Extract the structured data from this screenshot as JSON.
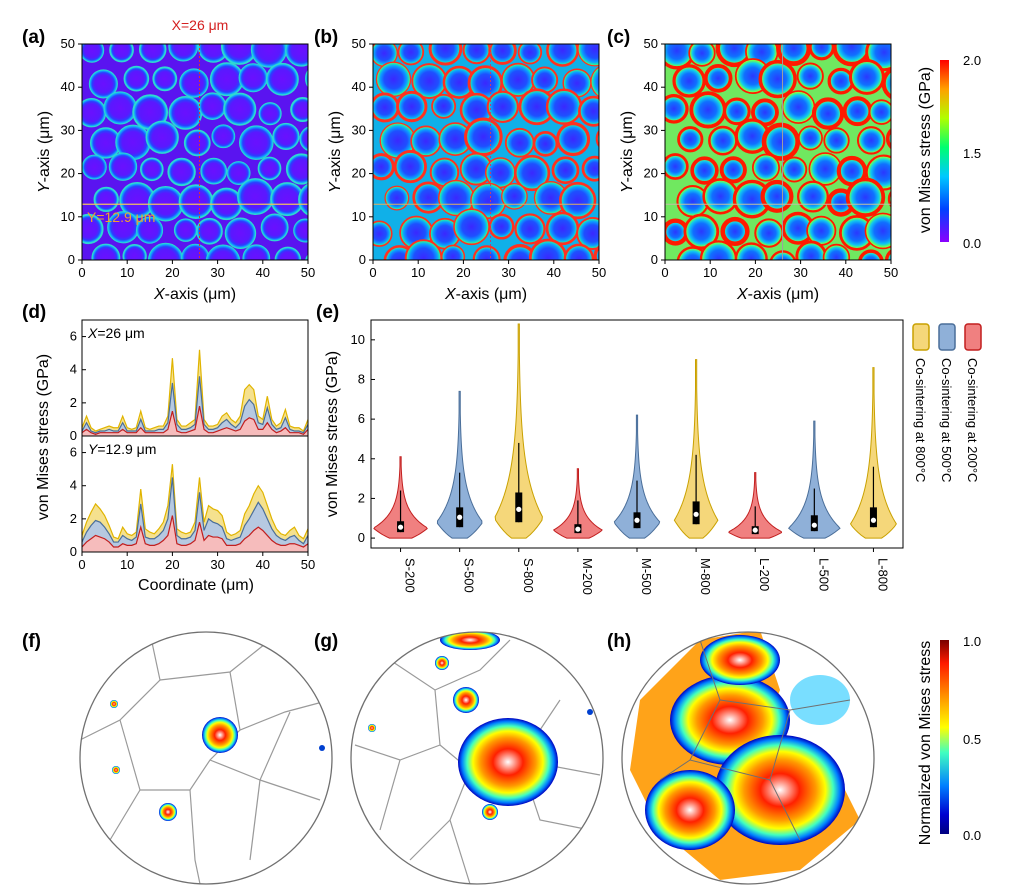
{
  "panels": {
    "a": {
      "letter": "(a)"
    },
    "b": {
      "letter": "(b)"
    },
    "c": {
      "letter": "(c)"
    },
    "d": {
      "letter": "(d)"
    },
    "e": {
      "letter": "(e)"
    },
    "f": {
      "letter": "(f)"
    },
    "g": {
      "letter": "(g)"
    },
    "h": {
      "letter": "(h)"
    }
  },
  "maps": {
    "x_title_var": "X",
    "x_title_rest": "-axis (μm)",
    "y_title_var": "Y",
    "y_title_rest": "-axis (μm)",
    "x_ticks": [
      "0",
      "10",
      "20",
      "30",
      "40",
      "50"
    ],
    "y_ticks": [
      "0",
      "10",
      "20",
      "30",
      "40",
      "50"
    ],
    "x_line_label": "X=26 μm",
    "y_line_label": "Y=12.9 μm",
    "x_line_value": 26,
    "y_line_value": 12.9,
    "axis_range": [
      0,
      50
    ]
  },
  "colorbar_top": {
    "title": "von Mises stress (GPa)",
    "ticks": [
      "2.0",
      "1.5",
      "0.0"
    ],
    "tick_values": [
      2.0,
      1.5,
      0.0
    ],
    "range": [
      0.0,
      2.0
    ],
    "colormap": [
      "#ff0000",
      "#ffaa00",
      "#aaff00",
      "#00ff66",
      "#00c8ff",
      "#0040ff",
      "#7a00ff"
    ]
  },
  "colorbar_bottom": {
    "title": "Normalized von Mises stress",
    "ticks": [
      "1.0",
      "0.5",
      "0.0"
    ],
    "tick_values": [
      1.0,
      0.5,
      0.0
    ],
    "range": [
      0.0,
      1.0
    ],
    "colormap": [
      "#8b0000",
      "#ff2000",
      "#ff9900",
      "#ffff00",
      "#40ffbf",
      "#0080ff",
      "#0000c0",
      "#000080"
    ]
  },
  "chart_data": [
    {
      "panel": "d",
      "type": "line",
      "ylabel": "von Mises stress (GPa)",
      "xlabel": "Coordinate (μm)",
      "xlim": [
        0,
        50
      ],
      "ylim": [
        0,
        7
      ],
      "y_ticks": [
        "0",
        "2",
        "4",
        "6"
      ],
      "x_ticks": [
        "0",
        "10",
        "20",
        "30",
        "40",
        "50"
      ],
      "subplots": [
        {
          "label": "X=26 μm",
          "x": [
            0,
            1,
            2,
            3,
            4,
            5,
            6,
            7,
            8,
            9,
            10,
            11,
            12,
            13,
            14,
            15,
            16,
            17,
            18,
            19,
            20,
            21,
            22,
            23,
            24,
            25,
            26,
            27,
            28,
            29,
            30,
            31,
            32,
            33,
            34,
            35,
            36,
            37,
            38,
            39,
            40,
            41,
            42,
            43,
            44,
            45,
            46,
            47,
            48,
            49,
            50
          ],
          "series": [
            {
              "color": "#e0b400",
              "fill": "#f3dc7a",
              "values": [
                0.5,
                1.2,
                0.5,
                0.3,
                0.4,
                0.5,
                0.6,
                0.5,
                0.5,
                1.2,
                0.5,
                0.4,
                0.5,
                1.5,
                0.5,
                0.4,
                0.5,
                0.6,
                0.6,
                1.2,
                4.7,
                1.0,
                0.6,
                0.6,
                0.8,
                1.0,
                5.2,
                1.0,
                0.6,
                0.6,
                0.7,
                1.2,
                1.4,
                1.0,
                0.8,
                1.2,
                2.8,
                3.1,
                2.8,
                1.2,
                1.0,
                2.4,
                1.0,
                0.6,
                0.8,
                1.6,
                0.6,
                0.5,
                0.5,
                0.3,
                1.0
              ]
            },
            {
              "color": "#4a6e99",
              "fill": "#a9bfdc",
              "values": [
                0.3,
                0.8,
                0.3,
                0.2,
                0.3,
                0.3,
                0.4,
                0.3,
                0.3,
                0.8,
                0.3,
                0.3,
                0.3,
                1.0,
                0.3,
                0.3,
                0.3,
                0.4,
                0.4,
                0.8,
                3.2,
                0.7,
                0.4,
                0.4,
                0.5,
                0.7,
                3.6,
                0.7,
                0.4,
                0.4,
                0.5,
                0.8,
                1.0,
                0.7,
                0.5,
                0.8,
                1.8,
                2.2,
                1.9,
                0.8,
                0.7,
                1.7,
                0.7,
                0.4,
                0.5,
                1.1,
                0.4,
                0.3,
                0.3,
                0.2,
                0.7
              ]
            },
            {
              "color": "#c21f1f",
              "fill": "#f4b0b0",
              "values": [
                0.2,
                0.4,
                0.2,
                0.1,
                0.2,
                0.2,
                0.2,
                0.2,
                0.2,
                0.4,
                0.2,
                0.2,
                0.2,
                0.5,
                0.2,
                0.2,
                0.2,
                0.2,
                0.2,
                0.4,
                1.5,
                0.3,
                0.2,
                0.2,
                0.3,
                0.4,
                1.8,
                0.4,
                0.2,
                0.2,
                0.3,
                0.4,
                0.5,
                0.4,
                0.3,
                0.4,
                0.9,
                1.1,
                1.0,
                0.4,
                0.4,
                0.8,
                0.4,
                0.2,
                0.3,
                0.5,
                0.2,
                0.2,
                0.2,
                0.1,
                0.4
              ]
            }
          ]
        },
        {
          "label": "Y=12.9 μm",
          "x": [
            0,
            1,
            2,
            3,
            4,
            5,
            6,
            7,
            8,
            9,
            10,
            11,
            12,
            13,
            14,
            15,
            16,
            17,
            18,
            19,
            20,
            21,
            22,
            23,
            24,
            25,
            26,
            27,
            28,
            29,
            30,
            31,
            32,
            33,
            34,
            35,
            36,
            37,
            38,
            39,
            40,
            41,
            42,
            43,
            44,
            45,
            46,
            47,
            48,
            49,
            50
          ],
          "series": [
            {
              "color": "#e0b400",
              "fill": "#f3dc7a",
              "values": [
                1.0,
                1.8,
                2.4,
                2.9,
                2.6,
                2.2,
                1.6,
                0.9,
                0.8,
                1.5,
                1.1,
                1.0,
                1.2,
                3.8,
                1.4,
                1.2,
                1.1,
                1.4,
                1.8,
                2.8,
                5.3,
                1.4,
                1.2,
                1.1,
                1.2,
                1.8,
                4.5,
                1.8,
                2.8,
                2.6,
                2.5,
                2.2,
                1.2,
                1.0,
                1.1,
                1.3,
                2.3,
                2.8,
                3.5,
                4.0,
                3.6,
                2.8,
                2.0,
                1.4,
                1.1,
                1.0,
                1.3,
                1.5,
                1.0,
                0.8,
                1.4
              ]
            },
            {
              "color": "#4a6e99",
              "fill": "#a9bfdc",
              "values": [
                0.6,
                1.2,
                1.6,
                1.9,
                1.8,
                1.5,
                1.1,
                0.6,
                0.6,
                1.0,
                0.8,
                0.7,
                0.9,
                2.9,
                0.9,
                0.8,
                0.8,
                1.0,
                1.3,
                2.0,
                4.5,
                1.0,
                0.8,
                0.8,
                0.9,
                1.3,
                3.6,
                1.3,
                2.0,
                1.8,
                1.7,
                1.5,
                0.8,
                0.7,
                0.8,
                0.9,
                1.6,
                2.0,
                2.5,
                3.0,
                2.6,
                2.0,
                1.4,
                1.0,
                0.8,
                0.7,
                0.9,
                1.0,
                0.7,
                0.5,
                1.0
              ]
            },
            {
              "color": "#c21f1f",
              "fill": "#f4b0b0",
              "values": [
                0.3,
                0.6,
                0.8,
                1.0,
                0.9,
                0.8,
                0.6,
                0.3,
                0.3,
                0.5,
                0.4,
                0.4,
                0.5,
                1.5,
                0.5,
                0.4,
                0.4,
                0.5,
                0.7,
                1.0,
                2.2,
                0.5,
                0.4,
                0.4,
                0.5,
                0.7,
                1.8,
                0.7,
                1.0,
                0.9,
                0.9,
                0.8,
                0.4,
                0.4,
                0.4,
                0.5,
                0.8,
                1.0,
                1.3,
                1.5,
                1.3,
                1.0,
                0.7,
                0.5,
                0.4,
                0.4,
                0.5,
                0.5,
                0.4,
                0.3,
                0.5
              ]
            }
          ]
        }
      ]
    },
    {
      "panel": "e",
      "type": "violin",
      "ylabel": "von Mises stress (GPa)",
      "ylim": [
        -0.5,
        11
      ],
      "y_ticks": [
        "0",
        "2",
        "4",
        "6",
        "8",
        "10"
      ],
      "categories": [
        "S-200",
        "S-500",
        "S-800",
        "M-200",
        "M-500",
        "M-800",
        "L-200",
        "L-500",
        "L-800"
      ],
      "legend": [
        {
          "name": "Co-sintering at 200°C",
          "color": "#c21f1f",
          "fill": "#f08080"
        },
        {
          "name": "Co-sintering at 500°C",
          "color": "#4a6e99",
          "fill": "#8fb0d8"
        },
        {
          "name": "Co-sintering at 800°C",
          "color": "#c9a100",
          "fill": "#f5d77a"
        }
      ],
      "series_index": [
        0,
        1,
        2,
        0,
        1,
        2,
        0,
        1,
        2
      ],
      "max": [
        4.1,
        7.4,
        10.8,
        3.5,
        6.2,
        9.0,
        3.3,
        5.9,
        8.6
      ],
      "min": [
        0.0,
        0.0,
        0.0,
        0.0,
        0.0,
        0.0,
        0.0,
        0.0,
        0.0
      ],
      "q1": [
        0.3,
        0.55,
        0.8,
        0.25,
        0.5,
        0.7,
        0.2,
        0.35,
        0.55
      ],
      "median": [
        0.55,
        1.05,
        1.45,
        0.45,
        0.9,
        1.2,
        0.4,
        0.65,
        0.9
      ],
      "q3": [
        0.85,
        1.55,
        2.3,
        0.7,
        1.3,
        1.85,
        0.6,
        1.15,
        1.55
      ],
      "whisker_high": [
        2.4,
        3.3,
        4.8,
        1.9,
        2.9,
        4.2,
        1.6,
        2.5,
        3.6
      ],
      "mode": [
        0.5,
        0.8,
        1.0,
        0.4,
        0.8,
        0.9,
        0.3,
        0.5,
        0.7
      ],
      "peak_density": [
        1.0,
        0.85,
        0.9,
        0.9,
        0.85,
        0.8,
        1.0,
        0.95,
        0.85
      ]
    }
  ]
}
